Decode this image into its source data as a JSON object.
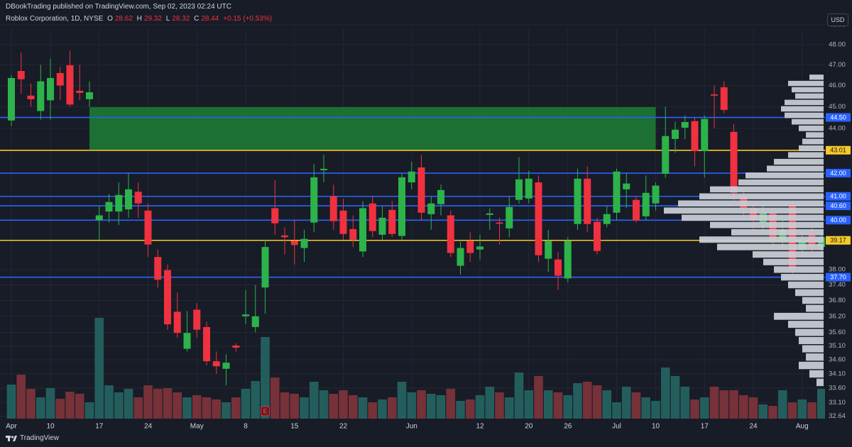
{
  "header": {
    "publisher": "DBookTrading published on TradingView.com, Sep 02, 2023 02:24 UTC",
    "symbol": "Roblox Corporation, 1D, NYSE",
    "ohlc": [
      {
        "key": "O",
        "value": 28.62
      },
      {
        "key": "H",
        "value": 29.32
      },
      {
        "key": "L",
        "value": 28.32
      },
      {
        "key": "C",
        "value": 28.44
      }
    ],
    "change": "+0.15 (+0.53%)",
    "currency": "USD"
  },
  "footer": {
    "brand": "TradingView"
  },
  "chart_data": {
    "type": "candlestick",
    "log_scale": true,
    "grid": true,
    "up_color": "#2cb34a",
    "down_color": "#f0313f",
    "volume_up_color": "#235e5d",
    "volume_down_color": "#773139",
    "categories": [
      "Apr",
      null,
      null,
      null,
      "10",
      null,
      null,
      null,
      null,
      "17",
      null,
      null,
      null,
      null,
      "24",
      null,
      null,
      null,
      null,
      "May",
      null,
      null,
      null,
      null,
      "8",
      null,
      null,
      null,
      null,
      "15",
      null,
      null,
      null,
      null,
      "22",
      null,
      null,
      null,
      null,
      null,
      null,
      "Jun",
      null,
      null,
      null,
      null,
      null,
      null,
      "12",
      null,
      null,
      null,
      null,
      "20",
      null,
      null,
      null,
      "26",
      null,
      null,
      null,
      null,
      "Jul",
      null,
      null,
      null,
      "10",
      null,
      null,
      null,
      null,
      "17",
      null,
      null,
      null,
      null,
      "24",
      null,
      null,
      null,
      null,
      "Aug",
      null,
      null
    ],
    "open": [
      44.36,
      46.7,
      45.52,
      44.8,
      45.3,
      46.6,
      46.98,
      45.75,
      45.35,
      40.0,
      40.36,
      40.36,
      40.45,
      41.2,
      40.4,
      38.5,
      37.98,
      36.37,
      35.0,
      36.45,
      35.8,
      34.55,
      34.28,
      35.12,
      36.2,
      35.8,
      37.3,
      40.5,
      39.37,
      39.15,
      38.86,
      39.9,
      42.13,
      41.0,
      40.4,
      39.63,
      38.72,
      40.7,
      39.4,
      40.43,
      39.35,
      41.6,
      42.25,
      40.25,
      40.67,
      40.2,
      38.15,
      39.14,
      38.8,
      40.22,
      39.9,
      39.66,
      40.85,
      40.91,
      41.6,
      38.43,
      38.4,
      37.65,
      39.84,
      41.76,
      39.93,
      39.84,
      40.31,
      41.3,
      40.85,
      40.16,
      40.7,
      41.97,
      43.52,
      44.03,
      44.33,
      42.97,
      45.58,
      45.92,
      43.84,
      41.0,
      40.5,
      39.9,
      40.3,
      39.2,
      40.6,
      38.8,
      39.4,
      38.9
    ],
    "high": [
      46.5,
      47.6,
      46.1,
      47.0,
      47.3,
      46.9,
      47.7,
      47.0,
      46.2,
      40.6,
      41.1,
      41.6,
      42.0,
      41.6,
      40.7,
      38.8,
      38.2,
      37.1,
      36.4,
      36.7,
      36.0,
      34.9,
      34.8,
      35.2,
      37.2,
      37.4,
      39.2,
      41.7,
      39.7,
      40.0,
      39.6,
      42.4,
      42.8,
      41.5,
      40.9,
      40.2,
      40.8,
      41.0,
      40.6,
      40.8,
      42.0,
      42.5,
      42.8,
      41.0,
      41.5,
      40.4,
      39.1,
      39.5,
      39.4,
      40.5,
      40.1,
      41.0,
      42.7,
      42.1,
      41.9,
      39.6,
      38.7,
      39.3,
      42.2,
      42.3,
      40.1,
      40.6,
      42.2,
      42.0,
      41.0,
      41.9,
      41.6,
      45.0,
      44.3,
      44.6,
      44.5,
      44.6,
      46.0,
      46.2,
      44.2,
      41.3,
      40.8,
      40.6,
      40.5,
      40.0,
      40.8,
      39.5,
      39.7,
      39.6
    ],
    "low": [
      44.1,
      45.6,
      45.0,
      44.4,
      44.4,
      45.3,
      45.0,
      45.3,
      45.0,
      39.2,
      39.9,
      39.8,
      40.1,
      40.1,
      38.5,
      37.3,
      35.7,
      35.4,
      34.9,
      35.4,
      34.4,
      34.1,
      33.7,
      34.9,
      35.9,
      35.6,
      36.3,
      39.4,
      38.6,
      38.2,
      38.3,
      39.5,
      41.6,
      39.6,
      39.2,
      38.9,
      38.5,
      39.3,
      39.2,
      39.3,
      39.2,
      41.3,
      40.0,
      39.6,
      40.2,
      38.5,
      37.8,
      38.3,
      38.4,
      39.6,
      39.0,
      39.3,
      40.7,
      40.7,
      38.3,
      37.9,
      37.2,
      37.5,
      39.6,
      39.5,
      38.6,
      39.7,
      40.0,
      40.5,
      39.9,
      40.0,
      40.4,
      41.8,
      42.9,
      43.5,
      42.3,
      41.8,
      44.0,
      44.7,
      40.8,
      40.2,
      39.6,
      39.5,
      38.9,
      38.8,
      37.8,
      38.6,
      38.7,
      38.7
    ],
    "close": [
      46.36,
      46.3,
      45.35,
      46.2,
      46.36,
      46.0,
      45.1,
      45.65,
      45.68,
      40.2,
      40.76,
      41.06,
      41.3,
      40.7,
      39.0,
      37.6,
      35.9,
      35.58,
      35.58,
      35.7,
      34.55,
      34.37,
      34.5,
      35.04,
      36.27,
      36.2,
      38.9,
      39.87,
      39.3,
      38.98,
      39.23,
      41.82,
      42.19,
      39.96,
      39.43,
      39.2,
      40.5,
      39.55,
      40.1,
      39.43,
      41.82,
      42.07,
      40.31,
      40.7,
      41.27,
      38.66,
      38.86,
      38.66,
      38.92,
      40.28,
      39.85,
      40.55,
      41.73,
      41.76,
      38.57,
      39.14,
      37.76,
      39.14,
      41.76,
      39.84,
      38.74,
      40.25,
      42.07,
      41.55,
      39.99,
      41.15,
      41.46,
      43.65,
      43.94,
      44.29,
      42.97,
      44.43,
      45.52,
      44.85,
      41.15,
      40.5,
      40.0,
      40.3,
      39.2,
      39.6,
      38.0,
      39.2,
      38.9,
      39.3
    ],
    "volume": [
      48,
      62,
      42,
      30,
      43,
      28,
      38,
      35,
      23,
      142,
      47,
      37,
      42,
      30,
      47,
      42,
      43,
      37,
      30,
      33,
      30,
      27,
      23,
      30,
      42,
      53,
      115,
      58,
      37,
      35,
      30,
      52,
      40,
      35,
      40,
      33,
      30,
      23,
      27,
      30,
      52,
      37,
      40,
      35,
      33,
      42,
      25,
      27,
      33,
      45,
      37,
      30,
      65,
      40,
      60,
      40,
      37,
      33,
      50,
      52,
      47,
      40,
      23,
      45,
      37,
      30,
      25,
      72,
      60,
      45,
      27,
      30,
      45,
      40,
      40,
      33,
      30,
      20,
      18,
      40,
      23,
      27,
      23,
      42
    ],
    "vlim": [
      0,
      160
    ],
    "ylim": [
      32.6,
      49.1
    ],
    "yticks": [
      {
        "value": 49,
        "label": "49.00"
      },
      {
        "value": 48,
        "label": "48.00"
      },
      {
        "value": 47,
        "label": "47.00"
      },
      {
        "value": 46,
        "label": "46.00"
      },
      {
        "value": 45,
        "label": "45.00"
      },
      {
        "value": 44,
        "label": "44.00"
      },
      {
        "value": 38,
        "label": "38.00"
      },
      {
        "value": 37.4,
        "label": "37.40"
      },
      {
        "value": 36.8,
        "label": "36.80"
      },
      {
        "value": 36.2,
        "label": "36.20"
      },
      {
        "value": 35.6,
        "label": "35.60"
      },
      {
        "value": 35.1,
        "label": "35.10"
      },
      {
        "value": 34.6,
        "label": "34.60"
      },
      {
        "value": 34.1,
        "label": "34.10"
      },
      {
        "value": 33.6,
        "label": "33.60"
      },
      {
        "value": 33.1,
        "label": "33.10"
      },
      32.64
    ],
    "levels": [
      {
        "value": 44.5,
        "label": "44.50",
        "color": "#2962ff",
        "text_color": "#ffffff"
      },
      {
        "value": 43.01,
        "color": "#f5c928",
        "text_color": "#131722"
      },
      {
        "value": 42,
        "label": "42.00",
        "color": "#2962ff",
        "text_color": "#ffffff"
      },
      {
        "value": 41,
        "label": "41.00",
        "color": "#2962ff",
        "text_color": "#ffffff"
      },
      {
        "value": 40.6,
        "label": "40.60",
        "color": "#2962ff",
        "text_color": "#ffffff"
      },
      {
        "value": 40,
        "label": "40.00",
        "color": "#2962ff",
        "text_color": "#ffffff"
      },
      {
        "value": 39.17,
        "color": "#f5c928",
        "text_color": "#131722"
      },
      {
        "value": 37.7,
        "label": "37.70",
        "color": "#2962ff",
        "text_color": "#ffffff"
      }
    ],
    "zone": {
      "low": 43.04,
      "high": 44.98,
      "start": 8,
      "end": 66,
      "color": "#1d7a34"
    },
    "earnings": {
      "index": 26,
      "label": "E"
    },
    "volume_profile": {
      "color": "#cdd0d8",
      "xlim": [
        0,
        230
      ],
      "prices": [
        46.4,
        46.1,
        45.8,
        45.5,
        45.2,
        44.9,
        44.6,
        44.3,
        44.0,
        43.7,
        43.4,
        43.1,
        42.8,
        42.5,
        42.2,
        41.9,
        41.6,
        41.3,
        41.0,
        40.7,
        40.4,
        40.1,
        39.8,
        39.5,
        39.2,
        38.9,
        38.6,
        38.3,
        38.0,
        37.7,
        37.4,
        37.1,
        36.8,
        36.5,
        36.2,
        35.9,
        35.6,
        35.3,
        35.0,
        34.7,
        34.4,
        34.1,
        33.8
      ],
      "values": [
        20,
        50,
        45,
        40,
        55,
        60,
        55,
        45,
        35,
        25,
        30,
        35,
        50,
        70,
        80,
        110,
        120,
        160,
        175,
        205,
        225,
        200,
        160,
        130,
        175,
        150,
        100,
        85,
        70,
        60,
        50,
        40,
        30,
        25,
        70,
        50,
        40,
        35,
        30,
        25,
        35,
        20,
        10
      ]
    }
  }
}
